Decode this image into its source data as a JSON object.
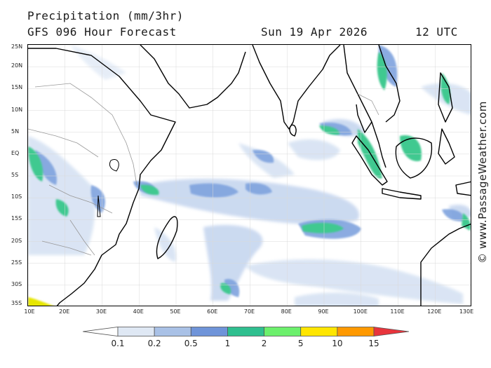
{
  "header": {
    "title": "Precipitation (mm/3hr)",
    "subtitle": "GFS 096 Hour Forecast",
    "valid_date": "Sun 19 Apr 2026",
    "valid_time": "12 UTC"
  },
  "map": {
    "projection": "equirectangular",
    "lon_range": [
      10,
      130
    ],
    "lat_range": [
      -35,
      25
    ],
    "lat_labels": [
      "25N",
      "20N",
      "15N",
      "10N",
      "5N",
      "EQ",
      "5S",
      "10S",
      "15S",
      "20S",
      "25S",
      "30S",
      "35S"
    ],
    "lat_values": [
      25,
      20,
      15,
      10,
      5,
      0,
      -5,
      -10,
      -15,
      -20,
      -25,
      -30,
      -35
    ],
    "lon_labels": [
      "10E",
      "20E",
      "30E",
      "40E",
      "50E",
      "60E",
      "70E",
      "80E",
      "90E",
      "100E",
      "110E",
      "120E",
      "130E"
    ],
    "lon_values": [
      10,
      20,
      30,
      40,
      50,
      60,
      70,
      80,
      90,
      100,
      110,
      120,
      130
    ],
    "coastline_color": "#000000",
    "border_color": "#999999"
  },
  "legend": {
    "ticks": [
      "0.1",
      "0.2",
      "0.5",
      "1",
      "2",
      "5",
      "10",
      "15"
    ],
    "colors": [
      "#ffffff",
      "#dfe8f4",
      "#a9c1e6",
      "#6f94d9",
      "#2fbf8f",
      "#6cf06c",
      "#ffe600",
      "#ff9900",
      "#e8343c"
    ]
  },
  "watermark": "© www.PassageWeather.com"
}
